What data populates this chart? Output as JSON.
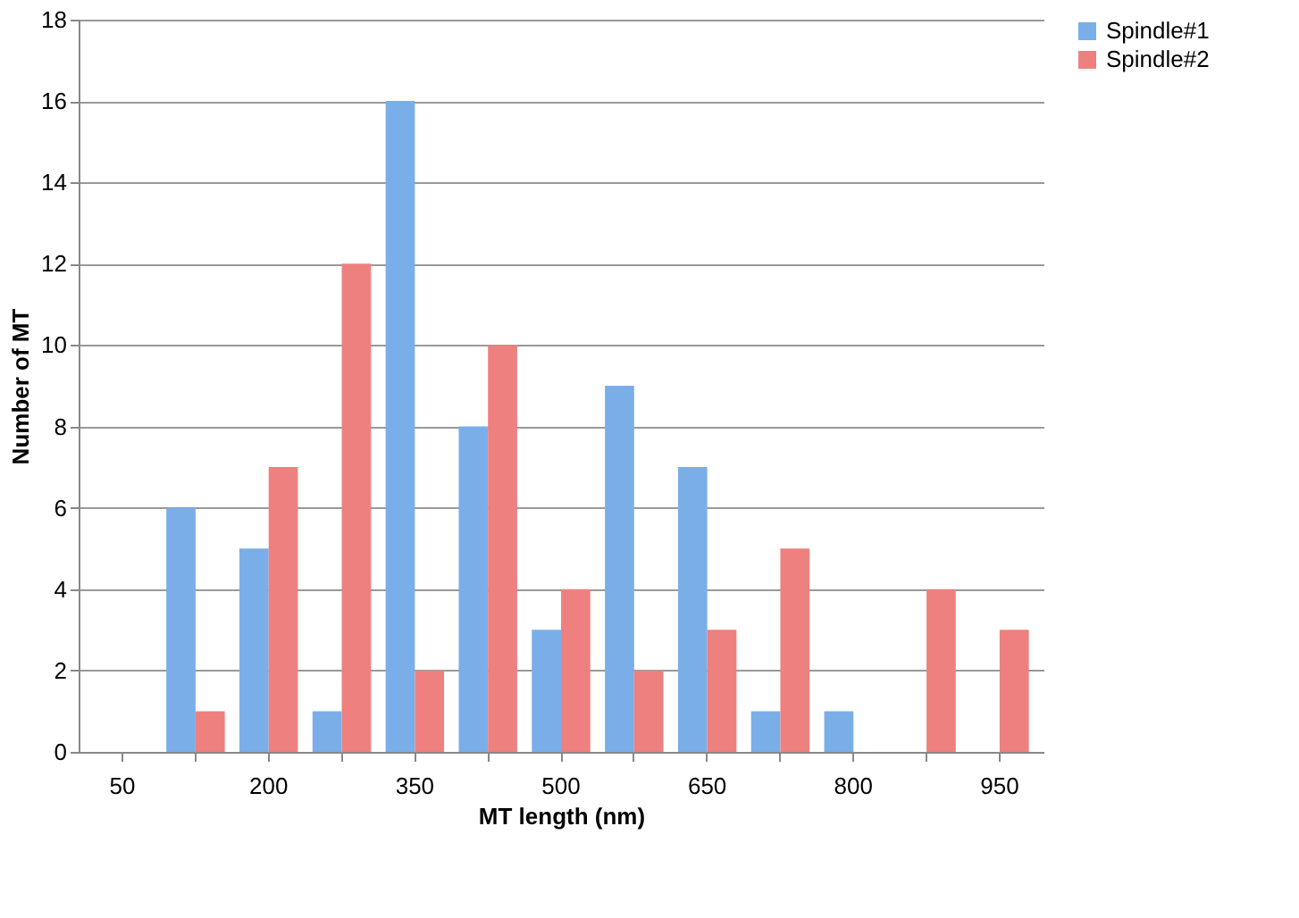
{
  "chart_data": {
    "type": "bar",
    "xlabel": "MT length (nm)",
    "ylabel": "Number of MT",
    "categories": [
      "50",
      null,
      "200",
      null,
      "350",
      null,
      "500",
      null,
      "650",
      null,
      "800",
      null,
      "950"
    ],
    "series": [
      {
        "name": "Spindle#1",
        "color": "#7aaee8",
        "values": [
          0,
          6,
          5,
          1,
          16,
          8,
          3,
          9,
          7,
          1,
          1,
          0,
          0
        ]
      },
      {
        "name": "Spindle#2",
        "color": "#ee8080",
        "values": [
          0,
          1,
          7,
          12,
          2,
          10,
          4,
          2,
          3,
          5,
          0,
          4,
          3
        ]
      }
    ],
    "ylim": [
      0,
      18
    ],
    "yticks": [
      0,
      2,
      4,
      6,
      8,
      10,
      12,
      14,
      16,
      18
    ],
    "grid": "y",
    "legend": "right"
  }
}
